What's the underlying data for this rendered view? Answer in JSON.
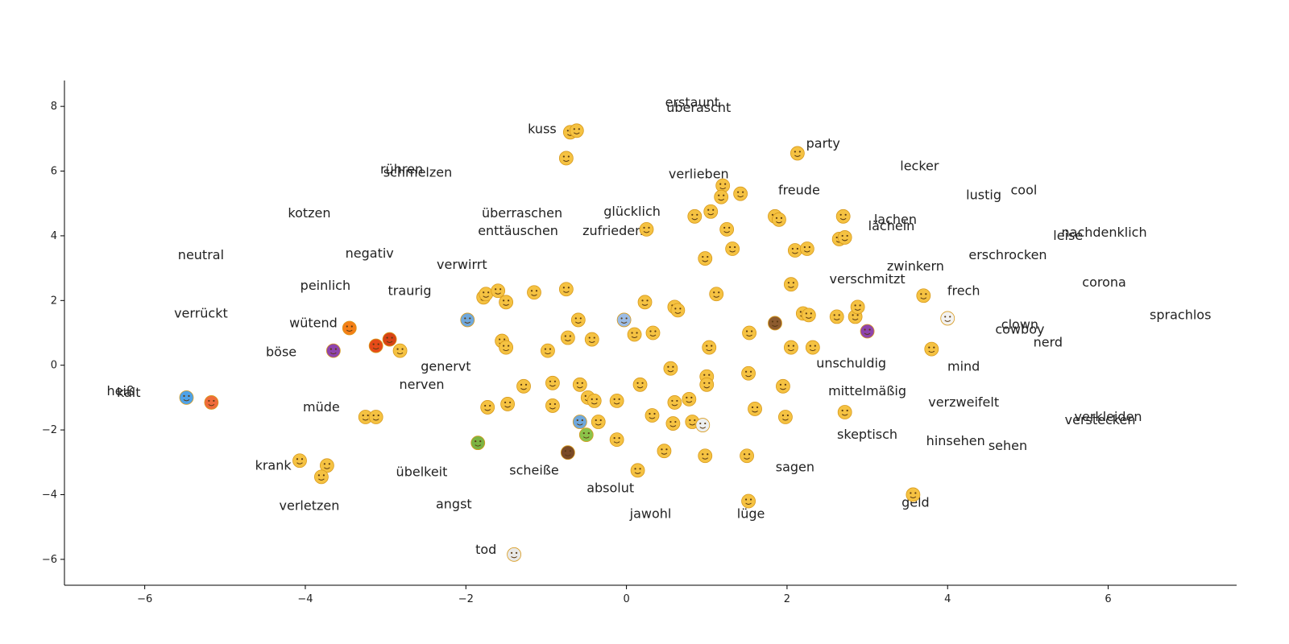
{
  "chart_data": {
    "type": "scatter",
    "title": "",
    "xlabel": "",
    "ylabel": "",
    "xlim": [
      -7,
      7.6
    ],
    "ylim": [
      -6.8,
      8.8
    ],
    "xticks": [
      -6,
      -4,
      -2,
      0,
      2,
      4,
      6
    ],
    "yticks": [
      -6,
      -4,
      -2,
      0,
      2,
      4,
      6,
      8
    ],
    "xtick_labels": [
      "−6",
      "−4",
      "−2",
      "0",
      "2",
      "4",
      "6"
    ],
    "ytick_labels": [
      "−6",
      "−4",
      "−2",
      "0",
      "2",
      "4",
      "6",
      "8"
    ],
    "grid": false,
    "legend": "none",
    "colors": {
      "axis": "#000000",
      "text": "#222222",
      "emoji_face": "#f5c242",
      "emoji_outline": "#d89a1c"
    },
    "words": [
      {
        "text": "erstaunt",
        "x": 0.82,
        "y": 8.12
      },
      {
        "text": "überascht",
        "x": 0.9,
        "y": 7.95
      },
      {
        "text": "kuss",
        "x": -1.05,
        "y": 7.3
      },
      {
        "text": "party",
        "x": 2.45,
        "y": 6.85
      },
      {
        "text": "lecker",
        "x": 3.65,
        "y": 6.15
      },
      {
        "text": "rühren",
        "x": -2.8,
        "y": 6.05
      },
      {
        "text": "schmelzen",
        "x": -2.6,
        "y": 5.95
      },
      {
        "text": "verlieben",
        "x": 0.9,
        "y": 5.9
      },
      {
        "text": "freude",
        "x": 2.15,
        "y": 5.4
      },
      {
        "text": "lustig",
        "x": 4.45,
        "y": 5.25
      },
      {
        "text": "cool",
        "x": 4.95,
        "y": 5.4
      },
      {
        "text": "kotzen",
        "x": -3.95,
        "y": 4.7
      },
      {
        "text": "überraschen",
        "x": -1.3,
        "y": 4.7
      },
      {
        "text": "glücklich",
        "x": 0.07,
        "y": 4.75
      },
      {
        "text": "lachen",
        "x": 3.35,
        "y": 4.5
      },
      {
        "text": "lächeln",
        "x": 3.3,
        "y": 4.3
      },
      {
        "text": "enttäuschen",
        "x": -1.35,
        "y": 4.15
      },
      {
        "text": "zufrieden",
        "x": -0.17,
        "y": 4.15
      },
      {
        "text": "leise",
        "x": 5.5,
        "y": 4.0
      },
      {
        "text": "nachdenklich",
        "x": 5.95,
        "y": 4.1
      },
      {
        "text": "neutral",
        "x": -5.3,
        "y": 3.4
      },
      {
        "text": "negativ",
        "x": -3.2,
        "y": 3.45
      },
      {
        "text": "erschrocken",
        "x": 4.75,
        "y": 3.4
      },
      {
        "text": "verwirrt",
        "x": -2.05,
        "y": 3.1
      },
      {
        "text": "zwinkern",
        "x": 3.6,
        "y": 3.05
      },
      {
        "text": "peinlich",
        "x": -3.75,
        "y": 2.45
      },
      {
        "text": "verschmitzt",
        "x": 3.0,
        "y": 2.65
      },
      {
        "text": "corona",
        "x": 5.95,
        "y": 2.55
      },
      {
        "text": "traurig",
        "x": -2.7,
        "y": 2.3
      },
      {
        "text": "frech",
        "x": 4.2,
        "y": 2.3
      },
      {
        "text": "verrückt",
        "x": -5.3,
        "y": 1.6
      },
      {
        "text": "sprachlos",
        "x": 6.9,
        "y": 1.55
      },
      {
        "text": "wütend",
        "x": -3.9,
        "y": 1.3
      },
      {
        "text": "clown",
        "x": 4.9,
        "y": 1.25
      },
      {
        "text": "cowboy",
        "x": 4.9,
        "y": 1.1
      },
      {
        "text": "nerd",
        "x": 5.25,
        "y": 0.7
      },
      {
        "text": "böse",
        "x": -4.3,
        "y": 0.4
      },
      {
        "text": "unschuldig",
        "x": 2.8,
        "y": 0.05
      },
      {
        "text": "genervt",
        "x": -2.25,
        "y": -0.05
      },
      {
        "text": "mind",
        "x": 4.2,
        "y": -0.05
      },
      {
        "text": "nerven",
        "x": -2.55,
        "y": -0.6
      },
      {
        "text": "heiß",
        "x": -6.3,
        "y": -0.8
      },
      {
        "text": "kalt",
        "x": -6.2,
        "y": -0.85
      },
      {
        "text": "mittelmäßig",
        "x": 3.0,
        "y": -0.8
      },
      {
        "text": "verzweifelt",
        "x": 4.2,
        "y": -1.15
      },
      {
        "text": "müde",
        "x": -3.8,
        "y": -1.3
      },
      {
        "text": "verkleiden",
        "x": 6.0,
        "y": -1.6
      },
      {
        "text": "verstecken",
        "x": 5.9,
        "y": -1.7
      },
      {
        "text": "skeptisch",
        "x": 3.0,
        "y": -2.15
      },
      {
        "text": "hinsehen",
        "x": 4.1,
        "y": -2.35
      },
      {
        "text": "sehen",
        "x": 4.75,
        "y": -2.5
      },
      {
        "text": "krank",
        "x": -4.4,
        "y": -3.1
      },
      {
        "text": "sagen",
        "x": 2.1,
        "y": -3.15
      },
      {
        "text": "übelkeit",
        "x": -2.55,
        "y": -3.3
      },
      {
        "text": "scheiße",
        "x": -1.15,
        "y": -3.25
      },
      {
        "text": "absolut",
        "x": -0.2,
        "y": -3.8
      },
      {
        "text": "verletzen",
        "x": -3.95,
        "y": -4.35
      },
      {
        "text": "angst",
        "x": -2.15,
        "y": -4.3
      },
      {
        "text": "geld",
        "x": 3.6,
        "y": -4.25
      },
      {
        "text": "jawohl",
        "x": 0.3,
        "y": -4.6
      },
      {
        "text": "lüge",
        "x": 1.55,
        "y": -4.6
      },
      {
        "text": "tod",
        "x": -1.75,
        "y": -5.7
      }
    ],
    "emojis": [
      {
        "icon": "kissing-face-icon",
        "glyph": "☺",
        "x": -0.7,
        "y": 7.2
      },
      {
        "icon": "kissing-face-icon",
        "glyph": "☺",
        "x": -0.62,
        "y": 7.25
      },
      {
        "icon": "blowing-kiss-icon",
        "glyph": "☺",
        "x": -0.75,
        "y": 6.4
      },
      {
        "icon": "party-face-icon",
        "glyph": "☺",
        "x": 2.13,
        "y": 6.55
      },
      {
        "icon": "heart-eyes-icon",
        "glyph": "☺",
        "x": 1.2,
        "y": 5.55
      },
      {
        "icon": "hugging-face-icon",
        "glyph": "☺",
        "x": 1.42,
        "y": 5.3
      },
      {
        "icon": "heart-eyes-icon",
        "glyph": "☺",
        "x": 1.18,
        "y": 5.2
      },
      {
        "icon": "star-eyes-icon",
        "glyph": "☺",
        "x": 1.05,
        "y": 4.75
      },
      {
        "icon": "smiling-face-icon",
        "glyph": "☺",
        "x": 0.85,
        "y": 4.6
      },
      {
        "icon": "smiling-face-icon",
        "glyph": "☺",
        "x": 1.85,
        "y": 4.6
      },
      {
        "icon": "smiling-face-icon",
        "glyph": "☺",
        "x": 1.9,
        "y": 4.5
      },
      {
        "icon": "grinning-face-icon",
        "glyph": "☺",
        "x": 2.7,
        "y": 4.6
      },
      {
        "icon": "relieved-face-icon",
        "glyph": "☺",
        "x": 0.25,
        "y": 4.2
      },
      {
        "icon": "smiling-face-outline-icon",
        "glyph": "☺",
        "x": 1.25,
        "y": 4.2
      },
      {
        "icon": "rolling-laughing-icon",
        "glyph": "☺",
        "x": 2.1,
        "y": 3.55
      },
      {
        "icon": "rolling-laughing-icon",
        "glyph": "☺",
        "x": 2.25,
        "y": 3.6
      },
      {
        "icon": "tears-of-joy-icon",
        "glyph": "☺",
        "x": 2.65,
        "y": 3.9
      },
      {
        "icon": "tears-of-joy-icon",
        "glyph": "☺",
        "x": 2.72,
        "y": 3.95
      },
      {
        "icon": "grinning-face-icon",
        "glyph": "☺",
        "x": 1.32,
        "y": 3.6
      },
      {
        "icon": "slight-smile-icon",
        "glyph": "☺",
        "x": 0.98,
        "y": 3.3
      },
      {
        "icon": "relieved-face-icon",
        "glyph": "☺",
        "x": 2.05,
        "y": 2.5
      },
      {
        "icon": "sad-face-icon",
        "glyph": "☺",
        "x": -1.78,
        "y": 2.1
      },
      {
        "icon": "sad-face-icon",
        "glyph": "☺",
        "x": -1.75,
        "y": 2.2
      },
      {
        "icon": "disappointed-face-icon",
        "glyph": "☺",
        "x": -1.6,
        "y": 2.3
      },
      {
        "icon": "pensive-face-icon",
        "glyph": "☺",
        "x": -1.15,
        "y": 2.25
      },
      {
        "icon": "crying-face-icon",
        "glyph": "☺",
        "x": -0.75,
        "y": 2.35
      },
      {
        "icon": "worried-face-icon",
        "glyph": "☺",
        "x": -1.5,
        "y": 1.95
      },
      {
        "icon": "hushed-face-icon",
        "glyph": "☺",
        "x": 0.23,
        "y": 1.95
      },
      {
        "icon": "dizzy-face-icon",
        "glyph": "☺",
        "x": 1.12,
        "y": 2.2
      },
      {
        "icon": "winking-face-icon",
        "glyph": "☺",
        "x": 0.6,
        "y": 1.8
      },
      {
        "icon": "winking-face-icon",
        "glyph": "☺",
        "x": 0.64,
        "y": 1.7
      },
      {
        "icon": "zany-face-icon",
        "glyph": "☺",
        "x": 2.2,
        "y": 1.6
      },
      {
        "icon": "zany-face-icon",
        "glyph": "☺",
        "x": 2.27,
        "y": 1.55
      },
      {
        "icon": "tongue-out-icon",
        "glyph": "☺",
        "x": 2.62,
        "y": 1.5
      },
      {
        "icon": "tongue-wink-icon",
        "glyph": "☺",
        "x": 2.85,
        "y": 1.5
      },
      {
        "icon": "tongue-wink-icon",
        "glyph": "☺",
        "x": 2.88,
        "y": 1.8
      },
      {
        "icon": "sunglasses-face-icon",
        "glyph": "☺",
        "x": 3.7,
        "y": 2.15
      },
      {
        "icon": "clown-face-icon",
        "glyph": "☺",
        "x": 4.0,
        "y": 1.45
      },
      {
        "icon": "devil-face-icon",
        "glyph": "☺",
        "x": 3.0,
        "y": 1.05
      },
      {
        "icon": "fearful-face-icon",
        "glyph": "☺",
        "x": -1.98,
        "y": 1.4
      },
      {
        "icon": "screaming-face-icon",
        "glyph": "☺",
        "x": -0.03,
        "y": 1.4
      },
      {
        "icon": "surprised-face-icon",
        "glyph": "☺",
        "x": -0.6,
        "y": 1.4
      },
      {
        "icon": "cowboy-face-icon",
        "glyph": "☺",
        "x": 1.85,
        "y": 1.3
      },
      {
        "icon": "angry-face-icon",
        "glyph": "☺",
        "x": -3.45,
        "y": 1.15
      },
      {
        "icon": "cursing-face-icon",
        "glyph": "☺",
        "x": -2.95,
        "y": 0.8
      },
      {
        "icon": "pouting-face-icon",
        "glyph": "☺",
        "x": -3.12,
        "y": 0.6
      },
      {
        "icon": "steam-nose-icon",
        "glyph": "☺",
        "x": -2.82,
        "y": 0.45
      },
      {
        "icon": "devil-face-icon",
        "glyph": "☺",
        "x": -3.65,
        "y": 0.45
      },
      {
        "icon": "confounded-face-icon",
        "glyph": "☺",
        "x": -1.55,
        "y": 0.75
      },
      {
        "icon": "persevering-face-icon",
        "glyph": "☺",
        "x": -1.5,
        "y": 0.55
      },
      {
        "icon": "weary-face-icon",
        "glyph": "☺",
        "x": -0.98,
        "y": 0.45
      },
      {
        "icon": "astonished-face-icon",
        "glyph": "☺",
        "x": -0.73,
        "y": 0.85
      },
      {
        "icon": "tired-face-icon",
        "glyph": "☺",
        "x": -0.43,
        "y": 0.8
      },
      {
        "icon": "flushed-face-icon",
        "glyph": "☺",
        "x": 0.1,
        "y": 0.95
      },
      {
        "icon": "flushed-face-icon",
        "glyph": "☺",
        "x": 0.33,
        "y": 1.0
      },
      {
        "icon": "hushed-face-icon",
        "glyph": "☺",
        "x": 1.03,
        "y": 0.55
      },
      {
        "icon": "pleading-face-icon",
        "glyph": "☺",
        "x": 1.53,
        "y": 1.0
      },
      {
        "icon": "nerd-face-icon",
        "glyph": "☺",
        "x": 2.05,
        "y": 0.55
      },
      {
        "icon": "halo-face-icon",
        "glyph": "☺",
        "x": 2.32,
        "y": 0.55
      },
      {
        "icon": "nerd-face-icon",
        "glyph": "☺",
        "x": 3.8,
        "y": 0.5
      },
      {
        "icon": "sweat-smile-icon",
        "glyph": "☺",
        "x": 0.55,
        "y": -0.1
      },
      {
        "icon": "neutral-face-icon",
        "glyph": "☺",
        "x": 1.0,
        "y": -0.35
      },
      {
        "icon": "neutral-face-icon",
        "glyph": "☺",
        "x": 1.0,
        "y": -0.6
      },
      {
        "icon": "shushing-face-icon",
        "glyph": "☺",
        "x": 1.52,
        "y": -0.25
      },
      {
        "icon": "sad-sweat-icon",
        "glyph": "☺",
        "x": -1.28,
        "y": -0.65
      },
      {
        "icon": "sad-sweat-icon",
        "glyph": "☺",
        "x": -0.92,
        "y": -0.55
      },
      {
        "icon": "drooling-face-icon",
        "glyph": "☺",
        "x": -0.58,
        "y": -0.6
      },
      {
        "icon": "no-mouth-icon",
        "glyph": "☺",
        "x": 0.17,
        "y": -0.6
      },
      {
        "icon": "mask-face-icon",
        "glyph": "☺",
        "x": 1.95,
        "y": -0.65
      },
      {
        "icon": "hushed-face-icon",
        "glyph": "☺",
        "x": -1.73,
        "y": -1.3
      },
      {
        "icon": "disappointed-face-icon",
        "glyph": "☺",
        "x": -1.48,
        "y": -1.2
      },
      {
        "icon": "expressionless-face-icon",
        "glyph": "☺",
        "x": -0.92,
        "y": -1.25
      },
      {
        "icon": "dizzy-face-icon",
        "glyph": "☺",
        "x": -0.48,
        "y": -1.0
      },
      {
        "icon": "dizzy-face-icon",
        "glyph": "☺",
        "x": -0.4,
        "y": -1.1
      },
      {
        "icon": "sunglasses-face-icon",
        "glyph": "☺",
        "x": -0.12,
        "y": -1.1
      },
      {
        "icon": "slight-frown-icon",
        "glyph": "☺",
        "x": 0.6,
        "y": -1.15
      },
      {
        "icon": "upside-down-icon",
        "glyph": "☺",
        "x": 0.78,
        "y": -1.05
      },
      {
        "icon": "neutral-face-icon",
        "glyph": "☺",
        "x": 0.32,
        "y": -1.55
      },
      {
        "icon": "money-mouth-icon",
        "glyph": "☺",
        "x": 1.6,
        "y": -1.35
      },
      {
        "icon": "monocle-face-icon",
        "glyph": "☺",
        "x": 1.98,
        "y": -1.6
      },
      {
        "icon": "thinking-face-icon",
        "glyph": "☺",
        "x": 2.72,
        "y": -1.45
      },
      {
        "icon": "fearful-face-icon",
        "glyph": "☺",
        "x": -0.58,
        "y": -1.75
      },
      {
        "icon": "tired-face-icon",
        "glyph": "☺",
        "x": -0.35,
        "y": -1.75
      },
      {
        "icon": "grimacing-face-icon",
        "glyph": "☺",
        "x": 0.58,
        "y": -1.8
      },
      {
        "icon": "hand-over-mouth-icon",
        "glyph": "☺",
        "x": 0.82,
        "y": -1.75
      },
      {
        "icon": "cloud-face-icon",
        "glyph": "☺",
        "x": 0.95,
        "y": -1.85
      },
      {
        "icon": "sleeping-face-icon",
        "glyph": "☺",
        "x": -3.25,
        "y": -1.6
      },
      {
        "icon": "yawning-face-icon",
        "glyph": "☺",
        "x": -3.12,
        "y": -1.6
      },
      {
        "icon": "vomiting-face-icon",
        "glyph": "☺",
        "x": -0.5,
        "y": -2.15
      },
      {
        "icon": "raised-eyebrow-icon",
        "glyph": "☺",
        "x": -0.12,
        "y": -2.3
      },
      {
        "icon": "nauseated-face-icon",
        "glyph": "☺",
        "x": -1.85,
        "y": -2.4
      },
      {
        "icon": "poop-icon",
        "glyph": "☺",
        "x": -0.73,
        "y": -2.7
      },
      {
        "icon": "facepalm-face-icon",
        "glyph": "☺",
        "x": 0.47,
        "y": -2.65
      },
      {
        "icon": "hushed-face-icon",
        "glyph": "☺",
        "x": 0.98,
        "y": -2.8
      },
      {
        "icon": "zipper-mouth-icon",
        "glyph": "☺",
        "x": 1.5,
        "y": -2.8
      },
      {
        "icon": "sneezing-face-icon",
        "glyph": "☺",
        "x": -4.07,
        "y": -2.95
      },
      {
        "icon": "sneezing-face-icon",
        "glyph": "☺",
        "x": -3.73,
        "y": -3.1
      },
      {
        "icon": "bandage-face-icon",
        "glyph": "☺",
        "x": -3.8,
        "y": -3.45
      },
      {
        "icon": "yum-face-icon",
        "glyph": "☺",
        "x": 0.14,
        "y": -3.25
      },
      {
        "icon": "shushing-face-icon",
        "glyph": "☺",
        "x": 3.57,
        "y": -4.0
      },
      {
        "icon": "lying-face-icon",
        "glyph": "☺",
        "x": 1.52,
        "y": -4.2
      },
      {
        "icon": "hot-face-icon",
        "glyph": "☺",
        "x": -5.17,
        "y": -1.15
      },
      {
        "icon": "cold-face-icon",
        "glyph": "☺",
        "x": -5.48,
        "y": -1.0
      },
      {
        "icon": "skull-crossbones-icon",
        "glyph": "☠",
        "x": -1.4,
        "y": -5.85
      }
    ]
  }
}
